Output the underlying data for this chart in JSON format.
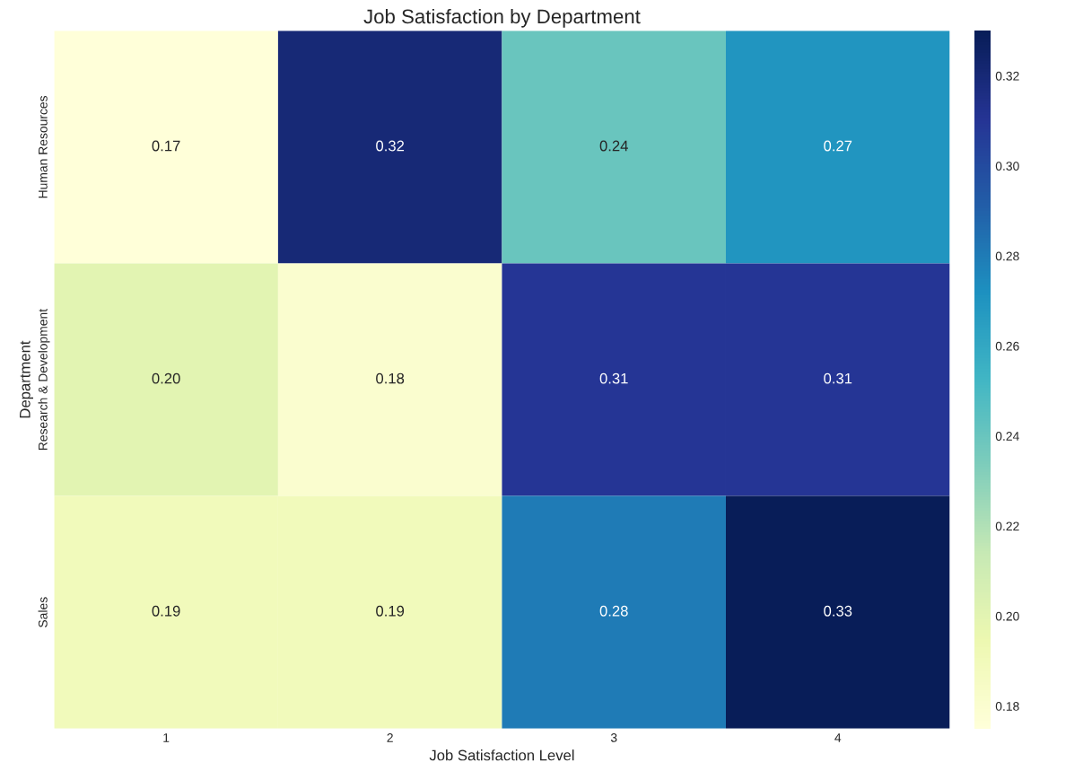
{
  "chart_data": {
    "type": "heatmap",
    "title": "Job Satisfaction by Department",
    "xlabel": "Job Satisfaction Level",
    "ylabel": "Department",
    "categories": [
      "1",
      "2",
      "3",
      "4"
    ],
    "y_categories": [
      "Human Resources",
      "Research & Development",
      "Sales"
    ],
    "cells": [
      [
        0.17,
        0.32,
        0.24,
        0.27
      ],
      [
        0.2,
        0.18,
        0.31,
        0.31
      ],
      [
        0.19,
        0.19,
        0.28,
        0.33
      ]
    ],
    "cell_labels": [
      [
        "0.17",
        "0.32",
        "0.24",
        "0.27"
      ],
      [
        "0.20",
        "0.18",
        "0.31",
        "0.31"
      ],
      [
        "0.19",
        "0.19",
        "0.28",
        "0.33"
      ]
    ],
    "clim": [
      0.175,
      0.33
    ],
    "cticks": [
      0.18,
      {
        "value": 0.2,
        "label": "0.20"
      },
      0.22,
      0.24,
      0.26,
      0.28,
      {
        "value": 0.3,
        "label": "0.30"
      },
      0.32
    ],
    "data_labels": true
  }
}
